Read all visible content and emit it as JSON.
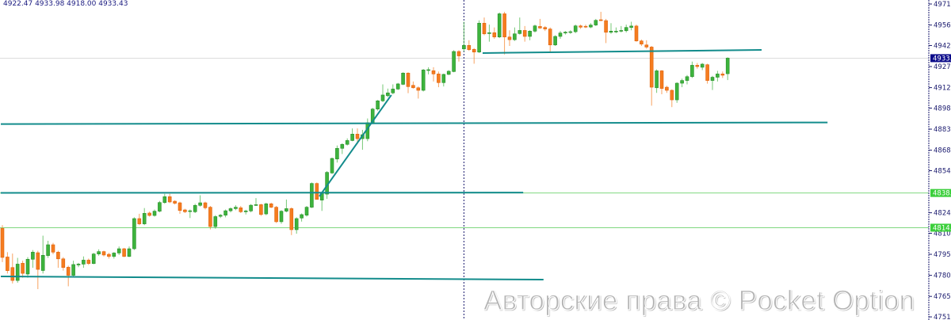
{
  "header": {
    "ohlc_readout": "4922.47 4933.98 4918.00 4933.43"
  },
  "watermark": "Авторские права © Pocket Option",
  "colors": {
    "bull": "#3db33d",
    "bull_border": "#2a8f2a",
    "bear": "#f57c1f",
    "bear_border": "#e0640f",
    "trendline": "#138c8c",
    "level": "#7fd87f",
    "level_tag": "#3ccf3c",
    "price_tag": "#0b0b8a",
    "axis_text": "#1a1a6e"
  },
  "chart_data": {
    "type": "candlestick",
    "ylim": [
      4749.3,
      4974.3
    ],
    "y_ticks": [
      4971.5,
      4956.7,
      4942.3,
      4927.5,
      4912.7,
      4898.3,
      4883.5,
      4868.7,
      4854.3,
      4824.7,
      4810.3,
      4795.5,
      4780.7,
      4765.9,
      4751.5
    ],
    "y_tick_labels": [
      "4971.5",
      "4956.7",
      "4942.3",
      "4927.5",
      "4912.7",
      "4898.3",
      "4883.5",
      "4868.7",
      "4854.3",
      "4824.7",
      "4810.3",
      "4795.5",
      "4780.7",
      "4765.9",
      "4751.5"
    ],
    "current_price": {
      "value": 4933.4,
      "label": "4933.4"
    },
    "levels": [
      {
        "value": 4838.6,
        "label": "4838.6"
      },
      {
        "value": 4814.2,
        "label": "4814.2"
      }
    ],
    "vertical_marker_candle": 91,
    "trendlines": [
      {
        "from": [
          0,
          4887.1
        ],
        "to": [
          163,
          4888.2
        ]
      },
      {
        "from": [
          0,
          4838.7
        ],
        "to": [
          103,
          4838.9
        ]
      },
      {
        "from": [
          0,
          4779.9
        ],
        "to": [
          107,
          4777.7
        ]
      },
      {
        "from": [
          95,
          4937.0
        ],
        "to": [
          150,
          4939.2
        ]
      },
      {
        "from": [
          62.8,
          4836.2
        ],
        "to": [
          77,
          4907.5
        ]
      }
    ],
    "candles_ohlc": [
      [
        4813.7,
        4816,
        4790,
        4793.3
      ],
      [
        4793.6,
        4797,
        4782,
        4784
      ],
      [
        4786.2,
        4796,
        4775,
        4777.1
      ],
      [
        4777.1,
        4793,
        4775.5,
        4788.6
      ],
      [
        4789.2,
        4791,
        4779,
        4782.1
      ],
      [
        4781.6,
        4793.5,
        4779,
        4792
      ],
      [
        4792,
        4798.5,
        4786,
        4797
      ],
      [
        4796.6,
        4798,
        4771,
        4784.9
      ],
      [
        4784.1,
        4808.6,
        4782,
        4794.8
      ],
      [
        4794.6,
        4805,
        4793,
        4802.2
      ],
      [
        4802.2,
        4803.5,
        4795.5,
        4797
      ],
      [
        4797,
        4798,
        4786,
        4792.3
      ],
      [
        4792.3,
        4793.5,
        4784,
        4786.2
      ],
      [
        4786.4,
        4787.5,
        4773,
        4780.7
      ],
      [
        4780.7,
        4791,
        4779.5,
        4788.3
      ],
      [
        4788,
        4789.5,
        4786.5,
        4788.6
      ],
      [
        4788.6,
        4794,
        4786,
        4791.4
      ],
      [
        4791.4,
        4792.5,
        4788,
        4789
      ],
      [
        4789,
        4796.5,
        4788.5,
        4795.7
      ],
      [
        4795.7,
        4799,
        4794.5,
        4797.4
      ],
      [
        4797.4,
        4798,
        4794,
        4795
      ],
      [
        4795.5,
        4796.5,
        4792.5,
        4794
      ],
      [
        4794,
        4797,
        4792.5,
        4796.4
      ],
      [
        4796.4,
        4801,
        4795,
        4799.4
      ],
      [
        4799.4,
        4800,
        4793.5,
        4794
      ],
      [
        4794,
        4801,
        4793.5,
        4799.4
      ],
      [
        4799.4,
        4821.5,
        4798.5,
        4820.6
      ],
      [
        4820.6,
        4824,
        4816,
        4816.9
      ],
      [
        4816.9,
        4828,
        4816,
        4824.3
      ],
      [
        4824.5,
        4825.5,
        4822,
        4822.8
      ],
      [
        4822.8,
        4827,
        4822,
        4825.8
      ],
      [
        4825.8,
        4833,
        4825,
        4831.9
      ],
      [
        4831.9,
        4838,
        4831,
        4836
      ],
      [
        4836,
        4838,
        4831.5,
        4832.3
      ],
      [
        4832.8,
        4833.5,
        4830.5,
        4831.4
      ],
      [
        4831.7,
        4832.5,
        4824,
        4826.3
      ],
      [
        4826.7,
        4827.5,
        4824.5,
        4825.4
      ],
      [
        4825.9,
        4827,
        4821,
        4826.1
      ],
      [
        4825.4,
        4831,
        4824.5,
        4829.9
      ],
      [
        4829.9,
        4837,
        4829,
        4831.7
      ],
      [
        4831.7,
        4832.5,
        4827,
        4828.2
      ],
      [
        4828.6,
        4829.5,
        4813,
        4815
      ],
      [
        4815,
        4823,
        4813.5,
        4822
      ],
      [
        4822.2,
        4823.8,
        4821,
        4823
      ],
      [
        4823,
        4827,
        4821.5,
        4826.1
      ],
      [
        4826.1,
        4828.5,
        4825,
        4827.6
      ],
      [
        4827.6,
        4830,
        4826.5,
        4828.6
      ],
      [
        4828.2,
        4829.5,
        4824.5,
        4825.4
      ],
      [
        4825.4,
        4826.8,
        4823.5,
        4826
      ],
      [
        4826,
        4830.8,
        4825,
        4830
      ],
      [
        4830,
        4835,
        4829.5,
        4830.4
      ],
      [
        4830.4,
        4831,
        4822.5,
        4823.5
      ],
      [
        4823.9,
        4831.8,
        4823,
        4831
      ],
      [
        4831,
        4831.8,
        4828,
        4828.6
      ],
      [
        4828.6,
        4829.5,
        4817.5,
        4818.4
      ],
      [
        4818.4,
        4826.5,
        4817,
        4825.8
      ],
      [
        4825.8,
        4834,
        4825,
        4827.6
      ],
      [
        4827.6,
        4828.5,
        4809,
        4812.8
      ],
      [
        4812.8,
        4821.5,
        4810,
        4820.6
      ],
      [
        4821,
        4824.2,
        4818.5,
        4823.4
      ],
      [
        4823,
        4829.5,
        4822,
        4828.6
      ],
      [
        4828.6,
        4846,
        4828,
        4845.3
      ],
      [
        4845.3,
        4846,
        4834,
        4834.1
      ],
      [
        4833.6,
        4839.5,
        4826,
        4838.8
      ],
      [
        4837.8,
        4854,
        4834.5,
        4853.1
      ],
      [
        4852.7,
        4863.5,
        4852,
        4862.9
      ],
      [
        4862.5,
        4872,
        4860,
        4870
      ],
      [
        4870,
        4873.5,
        4866,
        4872.8
      ],
      [
        4872.8,
        4877,
        4872,
        4875.5
      ],
      [
        4875.5,
        4884,
        4875,
        4880
      ],
      [
        4880,
        4884,
        4873,
        4876.8
      ],
      [
        4876.8,
        4883,
        4869,
        4879.6
      ],
      [
        4876.8,
        4891,
        4875,
        4888
      ],
      [
        4887.5,
        4898.5,
        4887,
        4897.6
      ],
      [
        4897.6,
        4904,
        4896.5,
        4903.4
      ],
      [
        4903.4,
        4915,
        4902.5,
        4907.5
      ],
      [
        4907,
        4912,
        4906,
        4909
      ],
      [
        4909,
        4915,
        4908,
        4911.7
      ],
      [
        4911.7,
        4916,
        4911,
        4915.3
      ],
      [
        4915,
        4923.5,
        4914.5,
        4922.9
      ],
      [
        4922.9,
        4923.5,
        4908.8,
        4913.4
      ],
      [
        4914.3,
        4917,
        4912,
        4912.6
      ],
      [
        4912.6,
        4913.5,
        4905,
        4910.8
      ],
      [
        4910.8,
        4925.8,
        4910,
        4925.1
      ],
      [
        4925.1,
        4927,
        4922,
        4925.3
      ],
      [
        4924.6,
        4927,
        4917,
        4922.3
      ],
      [
        4922.3,
        4924,
        4913,
        4916.2
      ],
      [
        4916.2,
        4922.5,
        4913.5,
        4922
      ],
      [
        4922,
        4925,
        4921.5,
        4924.2
      ],
      [
        4924,
        4939,
        4923.5,
        4938.1
      ],
      [
        4938.1,
        4939,
        4931,
        4935
      ],
      [
        4939.9,
        4959,
        4938,
        4942.4
      ],
      [
        4942.4,
        4946,
        4938.5,
        4939.4
      ],
      [
        4939.6,
        4940.5,
        4929.5,
        4937.7
      ],
      [
        4937.7,
        4960,
        4937,
        4958
      ],
      [
        4958,
        4962,
        4949.5,
        4950.5
      ],
      [
        4950.7,
        4957,
        4945,
        4951.3
      ],
      [
        4951.3,
        4955,
        4947,
        4948.3
      ],
      [
        4948.3,
        4965.5,
        4947.5,
        4964.6
      ],
      [
        4964.6,
        4966,
        4936,
        4948.3
      ],
      [
        4948.3,
        4953,
        4942,
        4946.4
      ],
      [
        4946.4,
        4955,
        4945.5,
        4950.5
      ],
      [
        4950.7,
        4962,
        4950,
        4952.9
      ],
      [
        4952.9,
        4956,
        4945,
        4948.7
      ],
      [
        4948.7,
        4953,
        4946,
        4952.4
      ],
      [
        4952.4,
        4957,
        4951.5,
        4956.1
      ],
      [
        4955.7,
        4961,
        4954,
        4954.6
      ],
      [
        4955,
        4956,
        4952.5,
        4953.9
      ],
      [
        4953.9,
        4955,
        4937,
        4942.7
      ],
      [
        4942.7,
        4949.5,
        4942,
        4948.7
      ],
      [
        4948.7,
        4952.5,
        4947,
        4951.1
      ],
      [
        4951.1,
        4952.5,
        4950,
        4951.7
      ],
      [
        4951.7,
        4953,
        4950.5,
        4952
      ],
      [
        4952,
        4957,
        4951,
        4956.1
      ],
      [
        4956.1,
        4957,
        4954,
        4955.2
      ],
      [
        4955.8,
        4957,
        4954.5,
        4955.3
      ],
      [
        4955.3,
        4958,
        4954.5,
        4956.7
      ],
      [
        4956.7,
        4961,
        4956,
        4960
      ],
      [
        4960.4,
        4966,
        4959.5,
        4959.8
      ],
      [
        4959.8,
        4961,
        4944,
        4951.6
      ],
      [
        4951.6,
        4958,
        4950.5,
        4952.4
      ],
      [
        4952.3,
        4955,
        4951,
        4952.4
      ],
      [
        4952.4,
        4956,
        4951.5,
        4952.9
      ],
      [
        4952.7,
        4957,
        4951.5,
        4955
      ],
      [
        4955,
        4959,
        4953,
        4956
      ],
      [
        4956,
        4957,
        4945,
        4945.5
      ],
      [
        4945.5,
        4946.5,
        4942,
        4943.3
      ],
      [
        4942.7,
        4946,
        4940,
        4941.2
      ],
      [
        4941.2,
        4942,
        4900,
        4913
      ],
      [
        4912.6,
        4925.5,
        4909,
        4924.5
      ],
      [
        4924.5,
        4925,
        4908,
        4912.1
      ],
      [
        4913,
        4914,
        4909,
        4910.8
      ],
      [
        4910.8,
        4911.5,
        4899,
        4904.1
      ],
      [
        4904.1,
        4916.5,
        4902,
        4915.8
      ],
      [
        4915.8,
        4919,
        4913,
        4917.7
      ],
      [
        4917.7,
        4921.5,
        4915,
        4920.4
      ],
      [
        4920.4,
        4931,
        4919.5,
        4928.4
      ],
      [
        4928.4,
        4930,
        4926,
        4927.5
      ],
      [
        4927,
        4930,
        4925,
        4929.2
      ],
      [
        4928.8,
        4929.5,
        4915.5,
        4917.7
      ],
      [
        4917.7,
        4921,
        4911,
        4920
      ],
      [
        4920,
        4924.5,
        4917,
        4922.3
      ],
      [
        4922.3,
        4924,
        4919.5,
        4921.4
      ],
      [
        4922.47,
        4933.98,
        4918,
        4933.43
      ]
    ]
  }
}
